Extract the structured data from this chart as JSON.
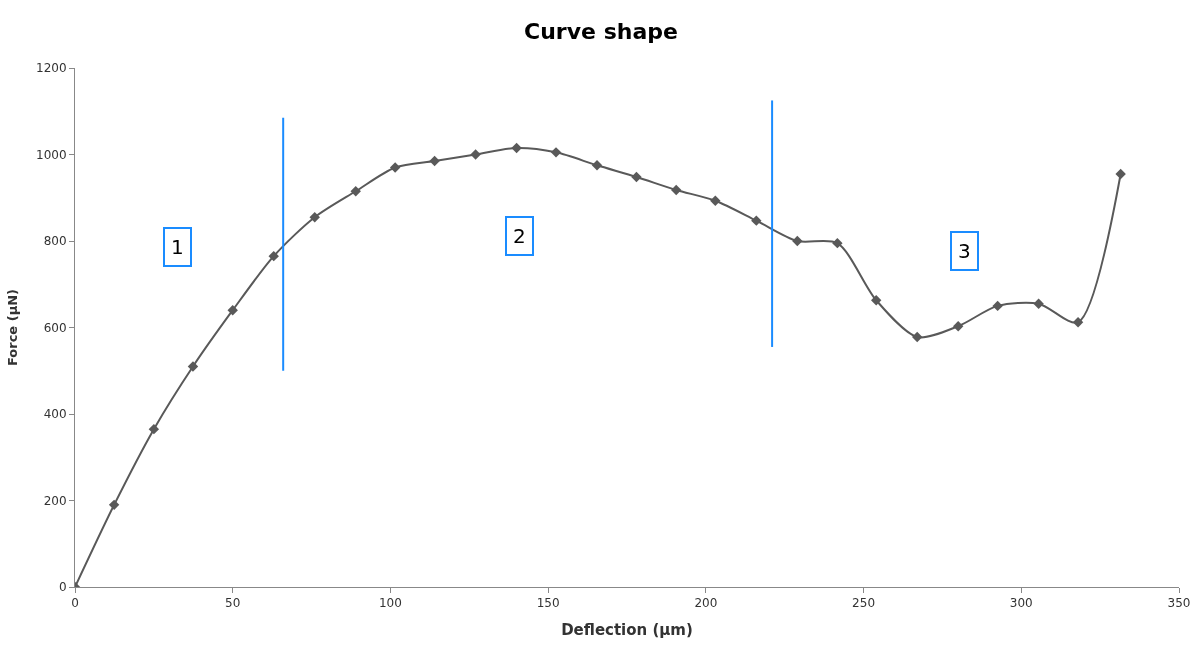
{
  "chart_data": {
    "type": "line",
    "title": "Curve shape",
    "xlabel": "Deflection (µm)",
    "ylabel": "Force (µN)",
    "xlim": [
      0,
      350
    ],
    "xticks": [
      0,
      50,
      100,
      150,
      200,
      250,
      300,
      350
    ],
    "ylim": [
      0,
      1200
    ],
    "yticks": [
      0,
      200,
      400,
      600,
      800,
      1000,
      1200
    ],
    "marker": "diamond",
    "line_style": "solid",
    "series": [
      {
        "color": "#595959",
        "x": [
          0,
          12.4,
          25,
          37.4,
          50,
          63,
          76,
          89,
          101.5,
          114,
          127,
          140,
          152.5,
          165.5,
          178,
          190.6,
          203,
          216,
          229,
          241.7,
          254,
          267,
          280,
          292.5,
          305.5,
          318,
          331.5
        ],
        "values": [
          0,
          190,
          365,
          510,
          640,
          765,
          855,
          915,
          970,
          985,
          1000,
          1015,
          1005,
          975,
          948,
          918,
          893,
          847,
          800,
          795,
          663,
          578,
          603,
          650,
          655,
          612,
          955
        ]
      },
      {
        "type": "line",
        "color": "#1a8cff",
        "marker": "none",
        "x": [
          66,
          66
        ],
        "values": [
          500,
          1085
        ]
      },
      {
        "type": "line",
        "color": "#1a8cff",
        "marker": "none",
        "x": [
          221,
          221
        ],
        "values": [
          555,
          1125
        ]
      }
    ],
    "annotations": [
      {
        "text": "1",
        "x": 32.5,
        "y": 785
      },
      {
        "text": "2",
        "x": 141,
        "y": 812
      },
      {
        "text": "3",
        "x": 282,
        "y": 777
      }
    ]
  }
}
